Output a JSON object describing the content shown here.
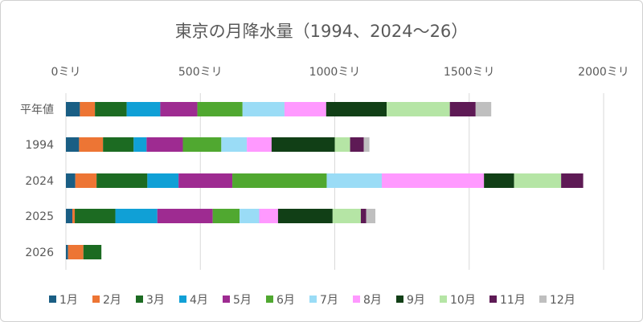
{
  "chart_data": {
    "type": "bar",
    "orientation": "horizontal",
    "stacked": true,
    "title": "東京の月降水量（1994、2024～26）",
    "categories": [
      "平年値",
      "1994",
      "2024",
      "2025",
      "2026"
    ],
    "xlim": [
      0,
      2000
    ],
    "xticks": [
      0,
      500,
      1000,
      1500,
      2000
    ],
    "xtick_labels": [
      "0ミリ",
      "500ミリ",
      "1000ミリ",
      "1500ミリ",
      "2000ミリ"
    ],
    "grid": true,
    "legend_position": "bottom",
    "series": [
      {
        "name": "1月",
        "color": "#1a5e84",
        "values": [
          52,
          49,
          35,
          24,
          8
        ]
      },
      {
        "name": "2月",
        "color": "#ed7534",
        "values": [
          56,
          89,
          79,
          9,
          57
        ]
      },
      {
        "name": "3月",
        "color": "#1c6b22",
        "values": [
          118,
          114,
          189,
          151,
          67
        ]
      },
      {
        "name": "4月",
        "color": "#10a0d6",
        "values": [
          125,
          48,
          116,
          156,
          null
        ]
      },
      {
        "name": "5月",
        "color": "#9e2b91",
        "values": [
          138,
          135,
          200,
          206,
          null
        ]
      },
      {
        "name": "6月",
        "color": "#50a830",
        "values": [
          168,
          143,
          351,
          100,
          null
        ]
      },
      {
        "name": "7月",
        "color": "#9adcf6",
        "values": [
          156,
          95,
          205,
          73,
          null
        ]
      },
      {
        "name": "8月",
        "color": "#ff99ff",
        "values": [
          155,
          92,
          380,
          70,
          null
        ]
      },
      {
        "name": "9月",
        "color": "#113f16",
        "values": [
          225,
          235,
          112,
          203,
          null
        ]
      },
      {
        "name": "10月",
        "color": "#b5e5a5",
        "values": [
          235,
          57,
          175,
          105,
          null
        ]
      },
      {
        "name": "11月",
        "color": "#5e1a55",
        "values": [
          96,
          51,
          82,
          20,
          null
        ]
      },
      {
        "name": "12月",
        "color": "#bfbfbf",
        "values": [
          58,
          21,
          0,
          34,
          null
        ]
      }
    ]
  }
}
